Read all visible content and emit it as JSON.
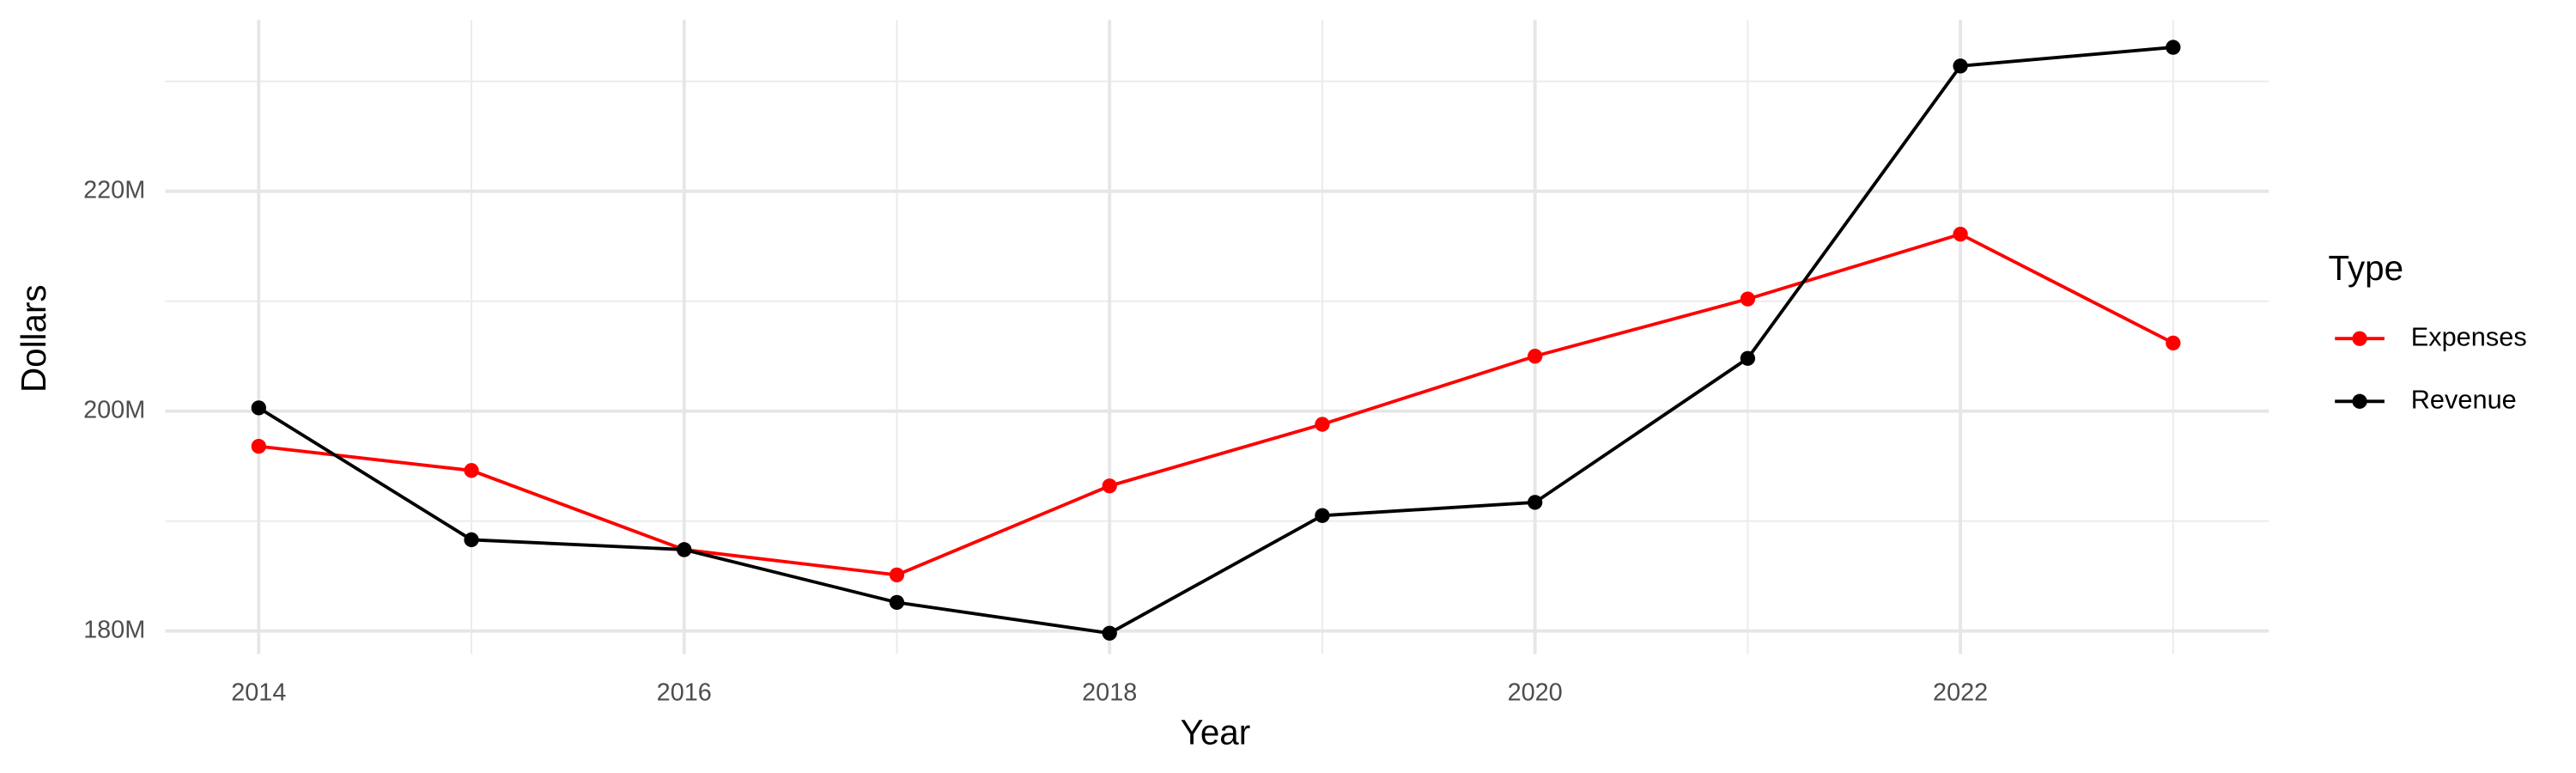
{
  "chart_data": {
    "type": "line",
    "x_label": "Year",
    "y_label": "Dollars",
    "legend_title": "Type",
    "legend_position": "right",
    "grid": true,
    "x": [
      2014,
      2015,
      2016,
      2017,
      2018,
      2019,
      2020,
      2021,
      2022,
      2023
    ],
    "series": [
      {
        "name": "Expenses",
        "color": "#ff0000",
        "values": [
          196800000,
          194600000,
          187400000,
          185100000,
          193200000,
          198800000,
          205000000,
          210200000,
          216100000,
          206200000
        ]
      },
      {
        "name": "Revenue",
        "color": "#000000",
        "values": [
          200300000,
          188300000,
          187400000,
          182600000,
          179800000,
          190500000,
          191700000,
          204800000,
          231400000,
          233100000
        ]
      }
    ],
    "xlim": [
      2013.56,
      2023.45
    ],
    "xticks": [
      2014,
      2016,
      2018,
      2020,
      2022
    ],
    "ylim": [
      177900000,
      235600000
    ],
    "yticks": [
      {
        "value": 180000000,
        "label": "180M"
      },
      {
        "value": 200000000,
        "label": "200M"
      },
      {
        "value": 220000000,
        "label": "220M"
      }
    ]
  }
}
